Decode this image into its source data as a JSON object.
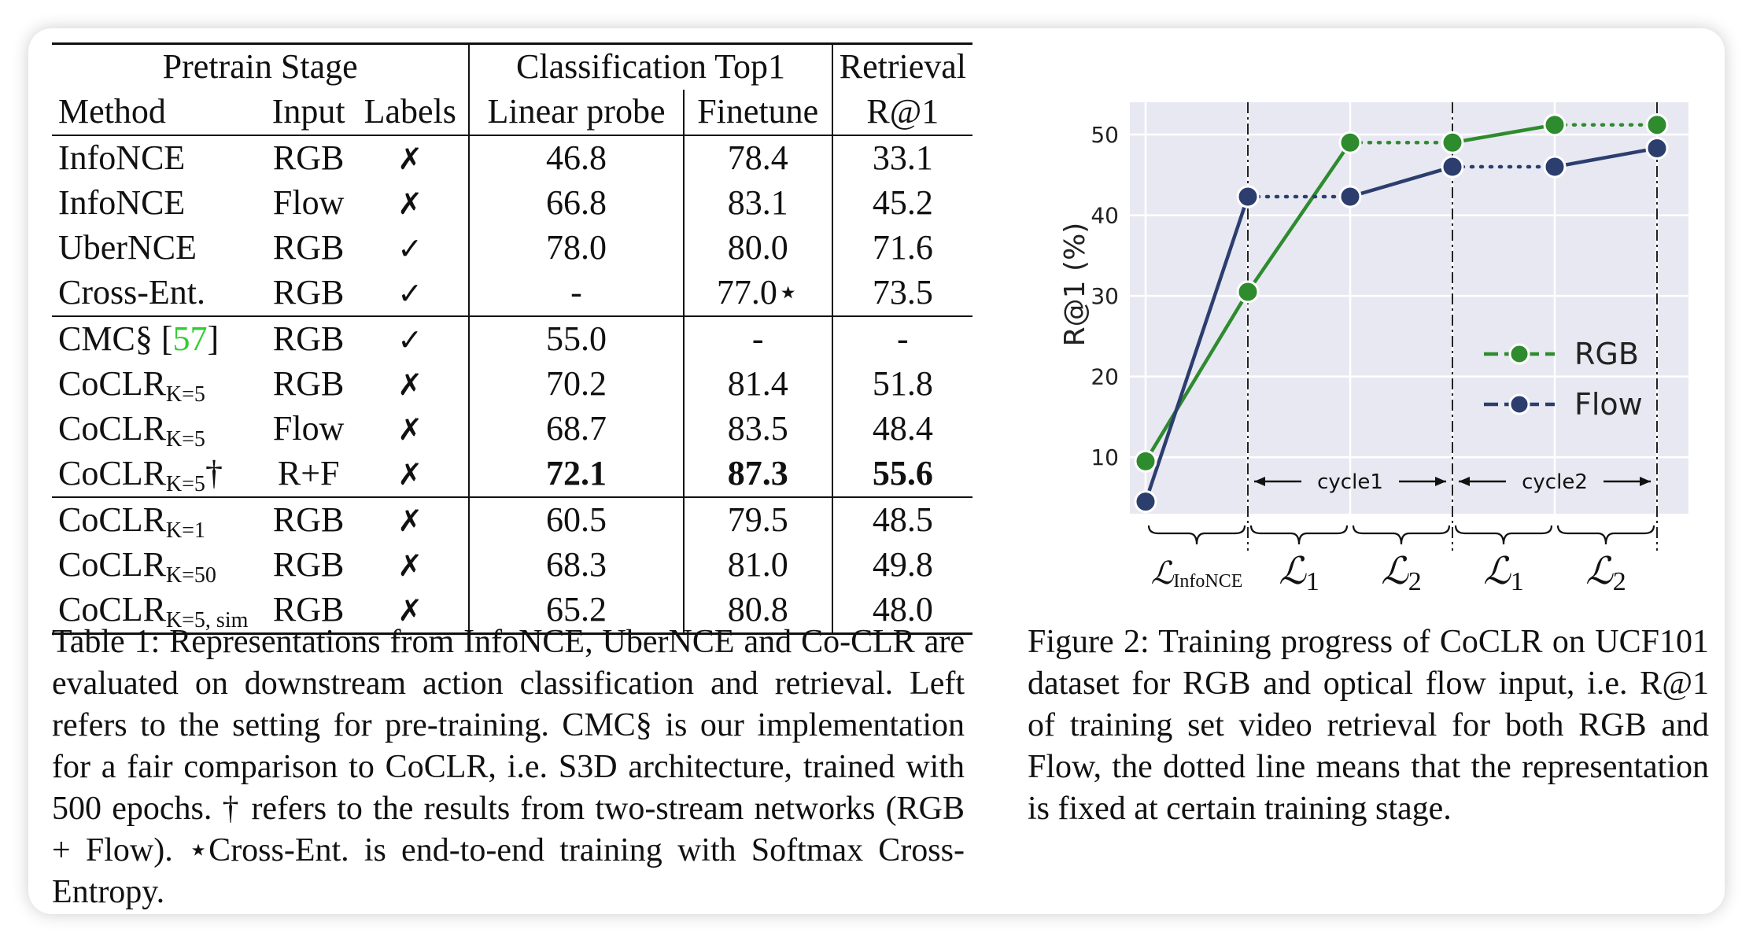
{
  "table": {
    "group_headers": [
      "Pretrain Stage",
      "Classification Top1",
      "Retrieval"
    ],
    "col_headers": [
      "Method",
      "Input",
      "Labels",
      "Linear probe",
      "Finetune",
      "R@1"
    ],
    "rows": [
      {
        "method": "InfoNCE",
        "sub": "",
        "suffix": "",
        "input": "RGB",
        "labels": "✗",
        "linear": "46.8",
        "finetune": "78.4",
        "r1": "33.1"
      },
      {
        "method": "InfoNCE",
        "sub": "",
        "suffix": "",
        "input": "Flow",
        "labels": "✗",
        "linear": "66.8",
        "finetune": "83.1",
        "r1": "45.2"
      },
      {
        "method": "UberNCE",
        "sub": "",
        "suffix": "",
        "input": "RGB",
        "labels": "✓",
        "linear": "78.0",
        "finetune": "80.0",
        "r1": "71.6"
      },
      {
        "method": "Cross-Ent.",
        "sub": "",
        "suffix": "",
        "input": "RGB",
        "labels": "✓",
        "linear": "-",
        "finetune": "77.0⋆",
        "r1": "73.5"
      },
      {
        "method": "CMC§ [",
        "cite": "57",
        "suffix": "]",
        "sub": "",
        "input": "RGB",
        "labels": "✓",
        "linear": "55.0",
        "finetune": "-",
        "r1": "-"
      },
      {
        "method": "CoCLR",
        "sub": "K=5",
        "suffix": "",
        "input": "RGB",
        "labels": "✗",
        "linear": "70.2",
        "finetune": "81.4",
        "r1": "51.8"
      },
      {
        "method": "CoCLR",
        "sub": "K=5",
        "suffix": "",
        "input": "Flow",
        "labels": "✗",
        "linear": "68.7",
        "finetune": "83.5",
        "r1": "48.4"
      },
      {
        "method": "CoCLR",
        "sub": "K=5",
        "suffix": "†",
        "input": "R+F",
        "labels": "✗",
        "linear": "72.1",
        "finetune": "87.3",
        "r1": "55.6"
      },
      {
        "method": "CoCLR",
        "sub": "K=1",
        "suffix": "",
        "input": "RGB",
        "labels": "✗",
        "linear": "60.5",
        "finetune": "79.5",
        "r1": "48.5"
      },
      {
        "method": "CoCLR",
        "sub": "K=50",
        "suffix": "",
        "input": "RGB",
        "labels": "✗",
        "linear": "68.3",
        "finetune": "81.0",
        "r1": "49.8"
      },
      {
        "method": "CoCLR",
        "sub": "K=5, sim",
        "suffix": "",
        "input": "RGB",
        "labels": "✗",
        "linear": "65.2",
        "finetune": "80.8",
        "r1": "48.0"
      }
    ]
  },
  "caption_table": "Table 1: Representations from InfoNCE, UberNCE and Co-CLR are evaluated on downstream action classification and retrieval. Left refers to the setting for pre-training. CMC§ is our implementation for a fair comparison to CoCLR, i.e. S3D architecture, trained with 500 epochs. † refers to the results from two-stream networks (RGB + Flow). ⋆Cross-Ent. is end-to-end training with Softmax Cross-Entropy.",
  "caption_figure": "Figure 2: Training progress of CoCLR on UCF101 dataset for RGB and optical flow input, i.e. R@1 of training set video retrieval for both RGB and Flow, the dotted line means that the representation is fixed at certain training stage.",
  "chart_data": {
    "type": "line",
    "ylabel": "R@1 (%)",
    "yticks": [
      10,
      20,
      30,
      40,
      50
    ],
    "ylim": [
      3,
      54
    ],
    "x": [
      0,
      1,
      2,
      3,
      4,
      5
    ],
    "series": [
      {
        "name": "RGB",
        "color": "#2e8b2e",
        "values": [
          9.5,
          30.5,
          49.0,
          49.0,
          51.2,
          51.2
        ],
        "segment_styles": [
          "solid",
          "solid",
          "dotted",
          "solid",
          "dotted"
        ]
      },
      {
        "name": "Flow",
        "color": "#2c3e6e",
        "values": [
          4.5,
          42.3,
          42.3,
          46.0,
          46.0,
          48.3
        ],
        "segment_styles": [
          "solid",
          "dotted",
          "solid",
          "dotted",
          "solid"
        ]
      }
    ],
    "legend_position": "right",
    "stage_labels": [
      "ℒInfoNCE",
      "ℒ1",
      "ℒ2",
      "ℒ1",
      "ℒ2"
    ],
    "cycle_labels": [
      "cycle1",
      "cycle2"
    ],
    "grid": true
  }
}
